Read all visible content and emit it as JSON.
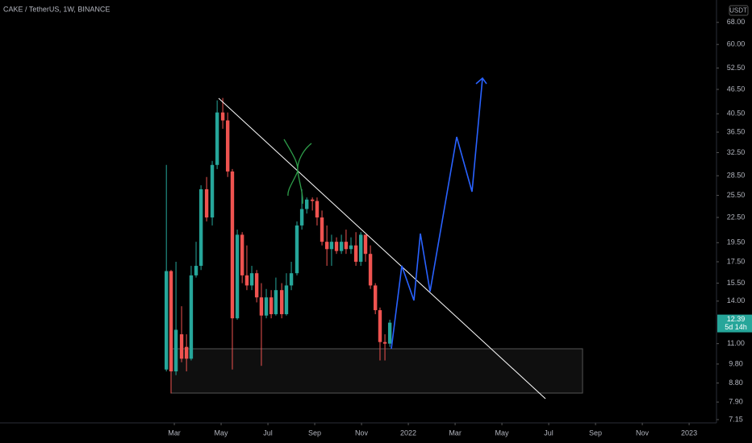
{
  "chart_data": {
    "type": "candlestick",
    "title": "CAKE / TetherUS, 1W, BINANCE",
    "currency": "USDT",
    "log_scale": true,
    "grid": false,
    "up_color": "#26a69a",
    "down_color": "#ef5350",
    "xlim": [
      -5.45,
      25.17
    ],
    "xticks": [
      {
        "value": 2,
        "label": "Mar"
      },
      {
        "value": 4,
        "label": "May"
      },
      {
        "value": 6,
        "label": "Jul"
      },
      {
        "value": 8,
        "label": "Sep"
      },
      {
        "value": 10,
        "label": "Nov"
      },
      {
        "value": 12,
        "label": "2022"
      },
      {
        "value": 14,
        "label": "Mar"
      },
      {
        "value": 16,
        "label": "May"
      },
      {
        "value": 18,
        "label": "Jul"
      },
      {
        "value": 20,
        "label": "Sep"
      },
      {
        "value": 22,
        "label": "Nov"
      },
      {
        "value": 24,
        "label": "2023"
      }
    ],
    "ylim": [
      7.02,
      77.2
    ],
    "yticks": [
      {
        "value": 68,
        "label": "68.00"
      },
      {
        "value": 60,
        "label": "60.00"
      },
      {
        "value": 52.5,
        "label": "52.50"
      },
      {
        "value": 46.5,
        "label": "46.50"
      },
      {
        "value": 40.5,
        "label": "40.50"
      },
      {
        "value": 36.5,
        "label": "36.50"
      },
      {
        "value": 32.5,
        "label": "32.50"
      },
      {
        "value": 28.5,
        "label": "28.50"
      },
      {
        "value": 25.5,
        "label": "25.50"
      },
      {
        "value": 22.5,
        "label": "22.50"
      },
      {
        "value": 19.5,
        "label": "19.50"
      },
      {
        "value": 17.5,
        "label": "17.50"
      },
      {
        "value": 15.5,
        "label": "15.50"
      },
      {
        "value": 14,
        "label": "14.00"
      },
      {
        "value": 11,
        "label": "11.00"
      },
      {
        "value": 9.8,
        "label": "9.80"
      },
      {
        "value": 8.8,
        "label": "8.80"
      },
      {
        "value": 7.9,
        "label": "7.90"
      },
      {
        "value": 7.15,
        "label": "7.15"
      }
    ],
    "last_price": 12.39,
    "countdown": "5d 14h",
    "x": [
      1.66,
      1.86,
      2.07,
      2.31,
      2.52,
      2.72,
      2.93,
      3.14,
      3.38,
      3.62,
      3.83,
      4.07,
      4.28,
      4.48,
      4.69,
      4.9,
      5.1,
      5.31,
      5.52,
      5.72,
      5.93,
      6.14,
      6.34,
      6.59,
      6.79,
      7.0,
      7.24,
      7.45,
      7.66,
      7.9,
      8.1,
      8.31,
      8.52,
      8.72,
      8.93,
      9.14,
      9.34,
      9.55,
      9.76,
      9.97,
      10.17,
      10.38,
      10.59,
      10.79,
      11.0,
      11.21
    ],
    "open": [
      9.5,
      16.6,
      9.4,
      11.6,
      10.8,
      10.1,
      16.2,
      17.1,
      26.4,
      22.5,
      30.3,
      40.8,
      39.0,
      29.2,
      12.7,
      20.4,
      16.2,
      15.3,
      16.4,
      14.3,
      12.9,
      14.3,
      13.0,
      14.9,
      13.0,
      15.3,
      16.4,
      21.5,
      23.6,
      24.9,
      24.7,
      22.5,
      19.6,
      18.8,
      19.6,
      18.6,
      19.6,
      18.8,
      19.2,
      17.5,
      20.4,
      18.3,
      15.3,
      13.3,
      11.1,
      11.0
    ],
    "high": [
      30.3,
      16.7,
      17.5,
      13.6,
      11.6,
      17.1,
      19.6,
      27.0,
      28.3,
      31.0,
      43.7,
      44.3,
      40.8,
      29.6,
      21.0,
      20.7,
      19.2,
      17.1,
      16.7,
      15.5,
      15.0,
      14.9,
      16.0,
      15.5,
      16.4,
      17.5,
      22.0,
      26.4,
      25.2,
      25.2,
      25.2,
      23.4,
      21.5,
      20.4,
      20.1,
      20.4,
      21.0,
      20.1,
      20.7,
      20.7,
      20.4,
      19.2,
      15.5,
      13.5,
      11.6,
      12.6
    ],
    "low": [
      9.4,
      8.3,
      9.2,
      9.9,
      9.4,
      10.0,
      16.0,
      16.7,
      22.0,
      21.5,
      29.6,
      37.2,
      28.3,
      9.5,
      12.6,
      15.5,
      14.9,
      14.9,
      13.9,
      9.7,
      12.7,
      12.7,
      12.9,
      12.7,
      12.9,
      14.9,
      16.2,
      21.0,
      23.0,
      23.4,
      21.5,
      19.2,
      17.1,
      17.1,
      18.3,
      18.3,
      18.3,
      18.3,
      17.1,
      17.1,
      17.5,
      15.0,
      13.0,
      10.0,
      10.0,
      10.8
    ],
    "close": [
      16.6,
      9.4,
      11.9,
      10.1,
      10.1,
      16.2,
      17.1,
      26.4,
      22.5,
      30.3,
      40.8,
      39.0,
      29.2,
      12.7,
      20.4,
      16.2,
      15.3,
      16.4,
      14.3,
      12.9,
      14.3,
      13.0,
      14.9,
      13.0,
      15.3,
      16.4,
      21.5,
      23.6,
      24.9,
      24.7,
      22.5,
      19.6,
      18.8,
      19.6,
      18.6,
      19.6,
      18.8,
      19.2,
      17.5,
      20.4,
      18.3,
      15.3,
      13.3,
      11.1,
      11.0,
      12.39
    ]
  }
}
